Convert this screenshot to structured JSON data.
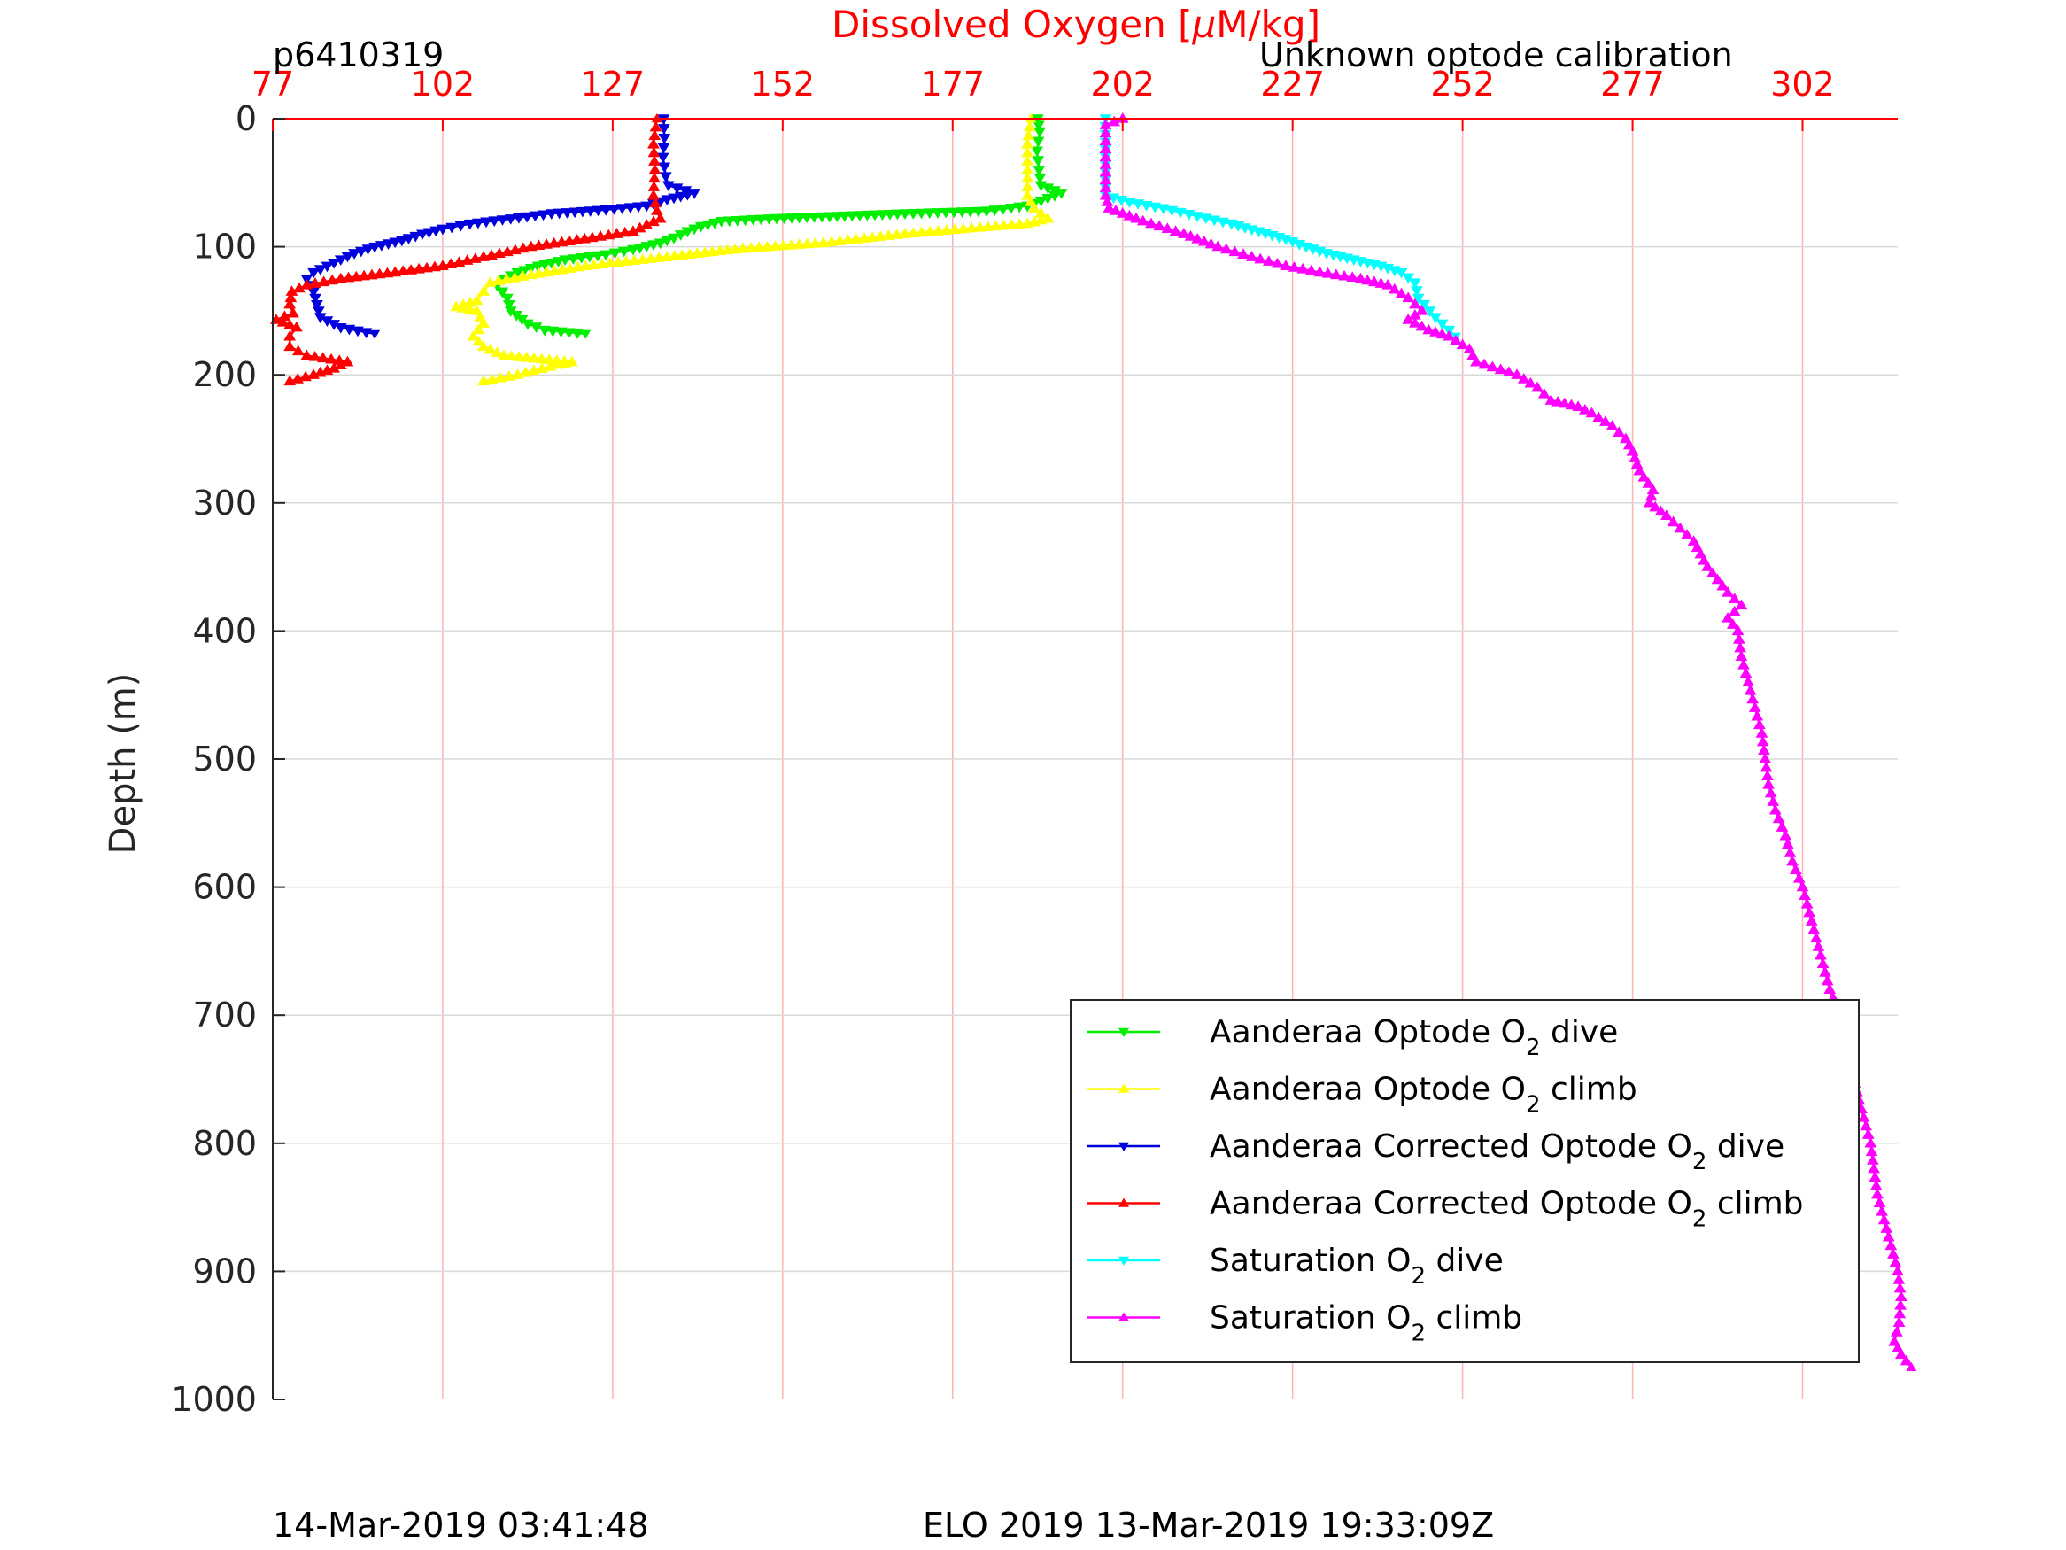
{
  "header": {
    "title": "Dissolved Oxygen [",
    "title_mu": "μ",
    "title_rest": "M/kg]",
    "left_label": "p6410319",
    "right_label": "Unknown optode calibration"
  },
  "footer": {
    "left": "14-Mar-2019 03:41:48",
    "center": "ELO 2019 13-Mar-2019 19:33:09Z"
  },
  "colors": {
    "x_axis": "#ff0000",
    "grid_x": "#ffb3b3",
    "grid_y": "#d9d9d9",
    "axis": "#262626"
  },
  "chart_data": {
    "type": "line",
    "title": "Dissolved Oxygen [μM/kg]",
    "xlabel": "Dissolved Oxygen [μM/kg]",
    "ylabel": "Depth (m)",
    "xlim": [
      77,
      316
    ],
    "ylim": [
      0,
      1000
    ],
    "y_reversed": true,
    "x_axis_position": "top",
    "xticks": [
      77,
      102,
      127,
      152,
      177,
      202,
      227,
      252,
      277,
      302
    ],
    "yticks": [
      0,
      100,
      200,
      300,
      400,
      500,
      600,
      700,
      800,
      900,
      1000
    ],
    "grid": true,
    "legend_position": "bottom-right",
    "series": [
      {
        "name": "Aanderaa Optode O2 dive",
        "label_pre": "Aanderaa Optode O",
        "label_post": " dive",
        "color": "#00ee00",
        "marker": "triangle-down",
        "points": [
          [
            189.5,
            0
          ],
          [
            189.8,
            10
          ],
          [
            189.4,
            25
          ],
          [
            189.7,
            40
          ],
          [
            190.0,
            52
          ],
          [
            193,
            58
          ],
          [
            191,
            62
          ],
          [
            188,
            68
          ],
          [
            182,
            72
          ],
          [
            170,
            74
          ],
          [
            160,
            76
          ],
          [
            150,
            78
          ],
          [
            143,
            80
          ],
          [
            140,
            84
          ],
          [
            138,
            88
          ],
          [
            136,
            93
          ],
          [
            134,
            97
          ],
          [
            130,
            102
          ],
          [
            126,
            106
          ],
          [
            120,
            110
          ],
          [
            116,
            115
          ],
          [
            113,
            120
          ],
          [
            111,
            125
          ],
          [
            110,
            130
          ],
          [
            111.5,
            140
          ],
          [
            112,
            150
          ],
          [
            114.5,
            160
          ],
          [
            117,
            165
          ],
          [
            123,
            168
          ]
        ]
      },
      {
        "name": "Aanderaa Optode O2 climb",
        "label_pre": "Aanderaa Optode O",
        "label_post": " climb",
        "color": "#ffff00",
        "marker": "triangle-up",
        "points": [
          [
            108,
            205
          ],
          [
            113,
            200
          ],
          [
            119,
            192
          ],
          [
            121,
            190
          ],
          [
            111,
            185
          ],
          [
            108,
            178
          ],
          [
            106.5,
            170
          ],
          [
            108,
            160
          ],
          [
            107,
            150
          ],
          [
            104,
            147
          ],
          [
            107,
            142
          ],
          [
            108,
            135
          ],
          [
            109,
            128
          ],
          [
            115,
            122
          ],
          [
            123,
            115
          ],
          [
            135,
            108
          ],
          [
            145,
            102
          ],
          [
            158,
            97
          ],
          [
            170,
            90
          ],
          [
            181,
            85
          ],
          [
            188,
            82
          ],
          [
            191,
            78
          ],
          [
            189,
            70
          ],
          [
            188,
            60
          ],
          [
            188,
            40
          ],
          [
            188,
            20
          ],
          [
            188.5,
            0
          ]
        ]
      },
      {
        "name": "Aanderaa Corrected Optode O2 dive",
        "label_pre": "Aanderaa Corrected Optode O",
        "label_post": " dive",
        "color": "#0000dd",
        "marker": "triangle-down",
        "points": [
          [
            134.5,
            0
          ],
          [
            134.6,
            15
          ],
          [
            134.4,
            30
          ],
          [
            134.8,
            45
          ],
          [
            135.2,
            52
          ],
          [
            139,
            58
          ],
          [
            135,
            63
          ],
          [
            132,
            68
          ],
          [
            126,
            71
          ],
          [
            118,
            74
          ],
          [
            112,
            78
          ],
          [
            106,
            82
          ],
          [
            102,
            86
          ],
          [
            99,
            90
          ],
          [
            96,
            95
          ],
          [
            92,
            100
          ],
          [
            89,
            105
          ],
          [
            87,
            110
          ],
          [
            85,
            115
          ],
          [
            83,
            120
          ],
          [
            82,
            125
          ],
          [
            82.5,
            130
          ],
          [
            83,
            135
          ],
          [
            83.5,
            145
          ],
          [
            84,
            155
          ],
          [
            87,
            163
          ],
          [
            92,
            168
          ]
        ]
      },
      {
        "name": "Aanderaa Corrected Optode O2 climb",
        "label_pre": "Aanderaa Corrected Optode O",
        "label_post": " climb",
        "color": "#ff0000",
        "marker": "triangle-up",
        "points": [
          [
            79.5,
            205
          ],
          [
            83,
            200
          ],
          [
            86,
            195
          ],
          [
            88,
            190
          ],
          [
            82,
            185
          ],
          [
            79.5,
            178
          ],
          [
            79.5,
            170
          ],
          [
            80.5,
            163
          ],
          [
            77.5,
            157
          ],
          [
            80,
            152
          ],
          [
            79.5,
            145
          ],
          [
            79.8,
            135
          ],
          [
            82,
            130
          ],
          [
            87,
            125
          ],
          [
            95,
            120
          ],
          [
            102,
            115
          ],
          [
            108,
            108
          ],
          [
            115,
            100
          ],
          [
            124,
            93
          ],
          [
            130,
            88
          ],
          [
            134,
            78
          ],
          [
            133.5,
            72
          ],
          [
            133,
            60
          ],
          [
            133.2,
            40
          ],
          [
            133,
            20
          ],
          [
            133.5,
            0
          ]
        ]
      },
      {
        "name": "Saturation O2 dive",
        "label_pre": "Saturation O",
        "label_post": " dive",
        "color": "#00ffff",
        "marker": "triangle-down",
        "points": [
          [
            199.5,
            0
          ],
          [
            199.5,
            30
          ],
          [
            199.5,
            60
          ],
          [
            203,
            65
          ],
          [
            208,
            70
          ],
          [
            213,
            76
          ],
          [
            218,
            82
          ],
          [
            222,
            88
          ],
          [
            226,
            94
          ],
          [
            229,
            100
          ],
          [
            232,
            105
          ],
          [
            236,
            110
          ],
          [
            240,
            115
          ],
          [
            243,
            120
          ],
          [
            245,
            128
          ],
          [
            245.5,
            140
          ],
          [
            248,
            155
          ],
          [
            250,
            165
          ],
          [
            251,
            170
          ]
        ]
      },
      {
        "name": "Saturation O2 climb",
        "label_pre": "Saturation O",
        "label_post": " climb",
        "color": "#ff00ff",
        "marker": "triangle-up",
        "points": [
          [
            202,
            0
          ],
          [
            199.5,
            5
          ],
          [
            199.5,
            30
          ],
          [
            199.5,
            60
          ],
          [
            200,
            70
          ],
          [
            205,
            80
          ],
          [
            211,
            90
          ],
          [
            216,
            100
          ],
          [
            221,
            108
          ],
          [
            226,
            115
          ],
          [
            231,
            120
          ],
          [
            237,
            125
          ],
          [
            241,
            130
          ],
          [
            244,
            140
          ],
          [
            246,
            150
          ],
          [
            244,
            157
          ],
          [
            247,
            165
          ],
          [
            250,
            170
          ],
          [
            253,
            180
          ],
          [
            254,
            190
          ],
          [
            260,
            200
          ],
          [
            263,
            210
          ],
          [
            265,
            220
          ],
          [
            269,
            225
          ],
          [
            271,
            230
          ],
          [
            274,
            240
          ],
          [
            276,
            250
          ],
          [
            277,
            260
          ],
          [
            278,
            275
          ],
          [
            280,
            290
          ],
          [
            279.5,
            300
          ],
          [
            282,
            310
          ],
          [
            284,
            320
          ],
          [
            286,
            330
          ],
          [
            287,
            340
          ],
          [
            288,
            350
          ],
          [
            289.5,
            360
          ],
          [
            291,
            370
          ],
          [
            293,
            380
          ],
          [
            291,
            390
          ],
          [
            292.5,
            400
          ],
          [
            293,
            420
          ],
          [
            294,
            440
          ],
          [
            295,
            460
          ],
          [
            296,
            480
          ],
          [
            296.5,
            500
          ],
          [
            297,
            520
          ],
          [
            298,
            540
          ],
          [
            299.5,
            560
          ],
          [
            300.5,
            580
          ],
          [
            302,
            600
          ],
          [
            303,
            620
          ],
          [
            304,
            640
          ],
          [
            305,
            660
          ],
          [
            306,
            680
          ],
          [
            307.5,
            700
          ],
          [
            308,
            720
          ],
          [
            309,
            740
          ],
          [
            310,
            760
          ],
          [
            311,
            780
          ],
          [
            312,
            800
          ],
          [
            312.5,
            820
          ],
          [
            313,
            840
          ],
          [
            314,
            860
          ],
          [
            315,
            880
          ],
          [
            316,
            900
          ],
          [
            316.5,
            920
          ],
          [
            316.2,
            940
          ],
          [
            315.5,
            955
          ],
          [
            316.5,
            965
          ],
          [
            318,
            975
          ]
        ]
      }
    ]
  }
}
